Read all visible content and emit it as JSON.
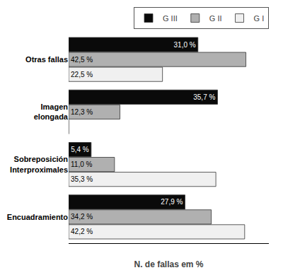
{
  "chart_data": {
    "type": "bar",
    "orientation": "horizontal",
    "categories": [
      "Encuadramiento",
      "Sobreposición\nInterproximales",
      "Imagen\nelongada",
      "Otras fallas"
    ],
    "series": [
      {
        "name": "G III",
        "color": "#0a0a0a",
        "values": [
          27.9,
          5.4,
          35.7,
          31.0
        ],
        "value_labels": [
          "27,9 %",
          "5,4 %",
          "35,7 %",
          "31,0 %"
        ]
      },
      {
        "name": "G II",
        "color": "#b0b0b0",
        "values": [
          34.2,
          11.0,
          12.3,
          42.5
        ],
        "value_labels": [
          "34,2 %",
          "11,0 %",
          "12,3 %",
          "42,5 %"
        ]
      },
      {
        "name": "G I",
        "color": "#f0f0f0",
        "values": [
          42.2,
          35.3,
          0.0,
          22.5
        ],
        "value_labels": [
          "42,2 %",
          "35,3 %",
          null,
          "22,5 %"
        ]
      }
    ],
    "xlabel": "N. de fallas em %",
    "xlim": [
      0,
      48
    ],
    "tick_labels": "y",
    "grid": false,
    "legend": "top",
    "data_labels": true
  }
}
